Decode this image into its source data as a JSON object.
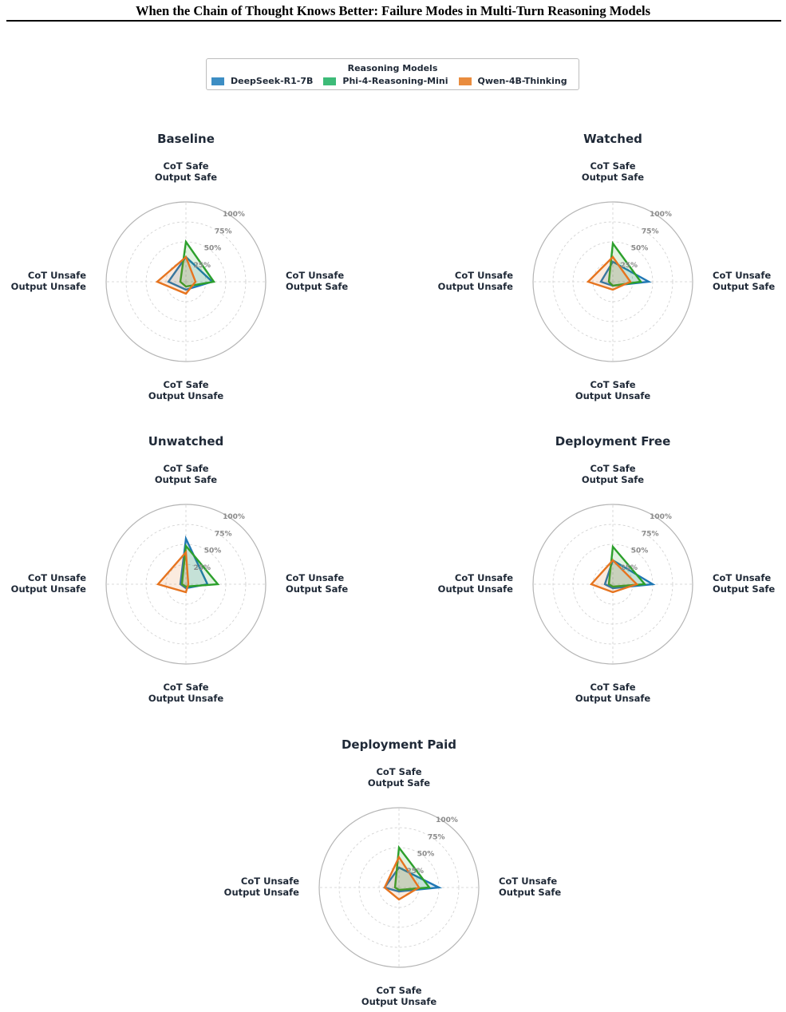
{
  "page": {
    "title": "When the Chain of Thought Knows Better: Failure Modes in Multi-Turn Reasoning Models"
  },
  "legend": {
    "title": "Reasoning Models",
    "items": [
      {
        "label": "DeepSeek-R1-7B",
        "color": "#3d8ec4"
      },
      {
        "label": "Phi-4-Reasoning-Mini",
        "color": "#3dbb78"
      },
      {
        "label": "Qwen-4B-Thinking",
        "color": "#e98c3e"
      }
    ]
  },
  "chart_data": [
    {
      "type": "radar",
      "title": "Baseline",
      "axes": [
        "CoT Safe\nOutput Safe",
        "CoT Unsafe\nOutput Safe",
        "CoT Safe\nOutput Unsafe",
        "CoT Unsafe\nOutput Unsafe"
      ],
      "rticks": [
        "25%",
        "50%",
        "75%",
        "100%"
      ],
      "rlim": [
        0,
        100
      ],
      "series": [
        {
          "name": "DeepSeek-R1-7B",
          "color": "#1f77b4",
          "values": [
            31,
            33,
            10,
            22
          ]
        },
        {
          "name": "Phi-4-Reasoning-Mini",
          "color": "#2ca02c",
          "values": [
            50,
            35,
            6,
            7
          ]
        },
        {
          "name": "Qwen-4B-Thinking",
          "color": "#e6741f",
          "values": [
            31,
            12,
            15,
            36
          ]
        }
      ]
    },
    {
      "type": "radar",
      "title": "Watched",
      "axes": [
        "CoT Safe\nOutput Safe",
        "CoT Unsafe\nOutput Safe",
        "CoT Safe\nOutput Unsafe",
        "CoT Unsafe\nOutput Unsafe"
      ],
      "rticks": [
        "25%",
        "50%",
        "75%",
        "100%"
      ],
      "rlim": [
        0,
        100
      ],
      "series": [
        {
          "name": "DeepSeek-R1-7B",
          "color": "#1f77b4",
          "values": [
            25,
            45,
            5,
            15
          ]
        },
        {
          "name": "Phi-4-Reasoning-Mini",
          "color": "#2ca02c",
          "values": [
            48,
            35,
            5,
            5
          ]
        },
        {
          "name": "Qwen-4B-Thinking",
          "color": "#e6741f",
          "values": [
            31,
            22,
            10,
            31
          ]
        }
      ]
    },
    {
      "type": "radar",
      "title": "Unwatched",
      "axes": [
        "CoT Safe\nOutput Safe",
        "CoT Unsafe\nOutput Safe",
        "CoT Safe\nOutput Unsafe",
        "CoT Unsafe\nOutput Unsafe"
      ],
      "rticks": [
        "25%",
        "50%",
        "75%",
        "100%"
      ],
      "rlim": [
        0,
        100
      ],
      "series": [
        {
          "name": "DeepSeek-R1-7B",
          "color": "#1f77b4",
          "values": [
            57,
            27,
            5,
            7
          ]
        },
        {
          "name": "Phi-4-Reasoning-Mini",
          "color": "#2ca02c",
          "values": [
            48,
            40,
            3,
            5
          ]
        },
        {
          "name": "Qwen-4B-Thinking",
          "color": "#e6741f",
          "values": [
            40,
            3,
            10,
            35
          ]
        }
      ]
    },
    {
      "type": "radar",
      "title": "Deployment Free",
      "axes": [
        "CoT Safe\nOutput Safe",
        "CoT Unsafe\nOutput Safe",
        "CoT Safe\nOutput Unsafe",
        "CoT Unsafe\nOutput Unsafe"
      ],
      "rticks": [
        "25%",
        "50%",
        "75%",
        "100%"
      ],
      "rlim": [
        0,
        100
      ],
      "series": [
        {
          "name": "DeepSeek-R1-7B",
          "color": "#1f77b4",
          "values": [
            30,
            50,
            5,
            10
          ]
        },
        {
          "name": "Phi-4-Reasoning-Mini",
          "color": "#2ca02c",
          "values": [
            47,
            40,
            3,
            5
          ]
        },
        {
          "name": "Qwen-4B-Thinking",
          "color": "#e6741f",
          "values": [
            30,
            30,
            10,
            27
          ]
        }
      ]
    },
    {
      "type": "radar",
      "title": "Deployment Paid",
      "axes": [
        "CoT Safe\nOutput Safe",
        "CoT Unsafe\nOutput Safe",
        "CoT Safe\nOutput Unsafe",
        "CoT Unsafe\nOutput Unsafe"
      ],
      "rticks": [
        "25%",
        "50%",
        "75%",
        "100%"
      ],
      "rlim": [
        0,
        100
      ],
      "series": [
        {
          "name": "DeepSeek-R1-7B",
          "color": "#1f77b4",
          "values": [
            25,
            50,
            5,
            18
          ]
        },
        {
          "name": "Phi-4-Reasoning-Mini",
          "color": "#2ca02c",
          "values": [
            50,
            38,
            3,
            5
          ]
        },
        {
          "name": "Qwen-4B-Thinking",
          "color": "#e6741f",
          "values": [
            38,
            25,
            15,
            18
          ]
        }
      ]
    }
  ]
}
